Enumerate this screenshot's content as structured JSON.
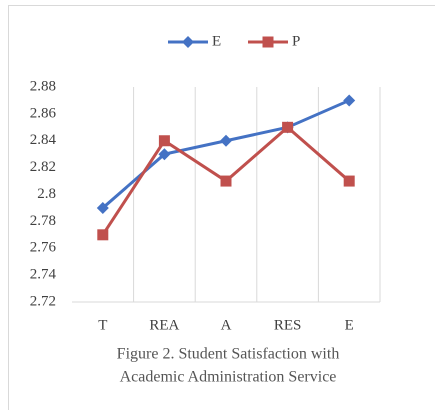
{
  "chart_data": {
    "type": "line",
    "title": [
      "Figure 2. Student Satisfaction with",
      "Academic Administration Service"
    ],
    "categories": [
      "T",
      "REA",
      "A",
      "RES",
      "E"
    ],
    "series": [
      {
        "name": "E",
        "color": "#4472c4",
        "marker": "diamond",
        "values": [
          2.79,
          2.83,
          2.84,
          2.85,
          2.87
        ]
      },
      {
        "name": "P",
        "color": "#c0504d",
        "marker": "square",
        "values": [
          2.77,
          2.84,
          2.81,
          2.85,
          2.81
        ]
      }
    ],
    "ylim": [
      2.72,
      2.88
    ],
    "yticks": [
      2.72,
      2.74,
      2.76,
      2.78,
      2.8,
      2.82,
      2.84,
      2.86,
      2.88
    ],
    "legend": "top"
  }
}
